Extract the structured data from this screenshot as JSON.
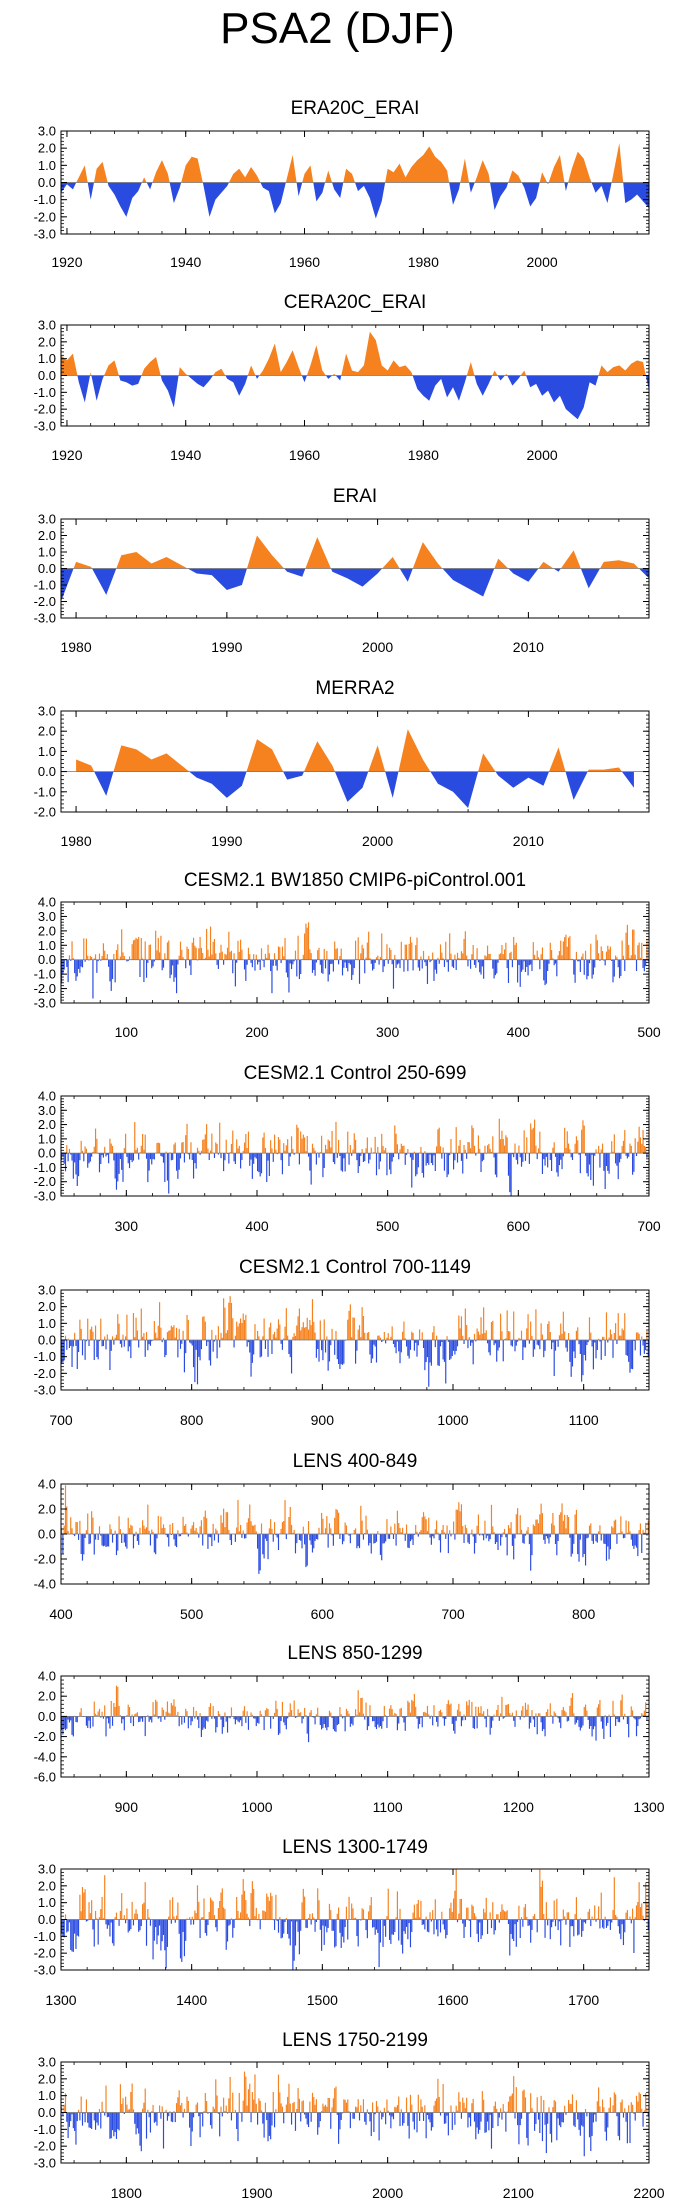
{
  "figure_title": "PSA2 (DJF)",
  "colors": {
    "positive": "#f5821f",
    "negative": "#2a4be0",
    "zero_line": "#777777"
  },
  "chart_data": [
    {
      "type": "area",
      "title": "ERA20C_ERAI",
      "xlim": [
        1919,
        2018
      ],
      "ylim": [
        -3,
        3
      ],
      "yticks": [
        "3.0",
        "2.0",
        "1.0",
        "0.0",
        "-1.0",
        "-2.0",
        "-3.0"
      ],
      "ytick_values": [
        3,
        2,
        1,
        0,
        -1,
        -2,
        -3
      ],
      "xticks": [
        1920,
        1940,
        1960,
        1980,
        2000
      ],
      "x_start": 1919,
      "x_step": 1,
      "values": [
        -0.6,
        -0.1,
        -0.4,
        0.3,
        1.0,
        -1.0,
        0.8,
        1.2,
        -0.2,
        -0.7,
        -1.4,
        -2.0,
        -0.9,
        -0.5,
        0.3,
        -0.4,
        0.6,
        1.3,
        0.5,
        -1.2,
        -0.3,
        1.0,
        1.5,
        1.4,
        -0.2,
        -2.0,
        -1.0,
        -0.6,
        -0.2,
        0.5,
        0.8,
        0.3,
        0.9,
        0.4,
        -0.3,
        -0.5,
        -1.8,
        -1.2,
        0.2,
        1.6,
        -0.8,
        0.5,
        1.0,
        -1.1,
        -0.6,
        0.7,
        -0.4,
        -0.9,
        0.8,
        0.5,
        -0.5,
        -0.2,
        -0.9,
        -2.1,
        -1.1,
        0.8,
        0.6,
        1.1,
        0.3,
        0.9,
        1.3,
        1.6,
        2.1,
        1.5,
        1.2,
        0.7,
        -1.3,
        -0.4,
        1.4,
        -0.6,
        0.3,
        1.3,
        0.5,
        -1.6,
        -0.8,
        -0.3,
        0.7,
        0.4,
        -0.3,
        -1.4,
        -0.9,
        0.6,
        -0.1,
        0.9,
        1.6,
        -0.5,
        0.8,
        1.8,
        1.4,
        0.3,
        -0.6,
        -0.2,
        -1.2,
        0.5,
        2.3,
        -1.2,
        -1.0,
        -0.7,
        -1.1,
        -1.5
      ]
    },
    {
      "type": "area",
      "title": "CERA20C_ERAI",
      "xlim": [
        1919,
        2018
      ],
      "ylim": [
        -3,
        3
      ],
      "yticks": [
        "3.0",
        "2.0",
        "1.0",
        "0.0",
        "-1.0",
        "-2.0",
        "-3.0"
      ],
      "ytick_values": [
        3,
        2,
        1,
        0,
        -1,
        -2,
        -3
      ],
      "xticks": [
        1920,
        1940,
        1960,
        1980,
        2000
      ],
      "x_start": 1919,
      "x_step": 1,
      "values": [
        1.2,
        0.9,
        1.3,
        -0.4,
        -1.6,
        0.2,
        -1.5,
        -0.2,
        0.6,
        0.9,
        -0.3,
        -0.4,
        -0.6,
        -0.5,
        0.4,
        0.8,
        1.1,
        -0.3,
        -0.9,
        -1.9,
        0.5,
        0.1,
        -0.2,
        -0.5,
        -0.7,
        -0.3,
        0.2,
        0.4,
        -0.2,
        -0.4,
        -1.2,
        -0.5,
        0.6,
        -0.2,
        0.3,
        1.0,
        1.9,
        0.2,
        0.8,
        1.5,
        0.5,
        -0.4,
        0.6,
        1.8,
        0.3,
        -0.2,
        0.1,
        -0.3,
        1.3,
        0.3,
        0.2,
        0.6,
        2.6,
        2.1,
        0.6,
        0.3,
        0.9,
        0.5,
        0.6,
        0.2,
        -0.8,
        -1.2,
        -1.5,
        -0.6,
        -0.2,
        -1.3,
        -0.7,
        -1.5,
        -0.4,
        0.8,
        -0.5,
        -1.2,
        -0.5,
        0.3,
        -0.3,
        0.1,
        -0.6,
        -0.2,
        0.3,
        -0.7,
        -0.5,
        -1.2,
        -0.9,
        -1.6,
        -1.2,
        -2.0,
        -2.3,
        -2.6,
        -1.9,
        -0.4,
        -0.6,
        0.6,
        0.2,
        0.5,
        0.6,
        0.3,
        0.7,
        0.9,
        0.8,
        -0.9
      ]
    },
    {
      "type": "area",
      "title": "ERAI",
      "xlim": [
        1979,
        2018
      ],
      "ylim": [
        -3,
        3
      ],
      "yticks": [
        "3.0",
        "2.0",
        "1.0",
        "0.0",
        "-1.0",
        "-2.0",
        "-3.0"
      ],
      "ytick_values": [
        3,
        2,
        1,
        0,
        -1,
        -2,
        -3
      ],
      "xticks": [
        1980,
        1990,
        2000,
        2010
      ],
      "x_start": 1979,
      "x_step": 1,
      "values": [
        -2.0,
        0.4,
        0.1,
        -1.6,
        0.8,
        1.0,
        0.3,
        0.7,
        0.2,
        -0.3,
        -0.4,
        -1.3,
        -1.0,
        2.0,
        0.8,
        -0.2,
        -0.5,
        1.9,
        -0.2,
        -0.6,
        -1.1,
        -0.3,
        0.7,
        -0.8,
        1.6,
        0.3,
        -0.7,
        -1.2,
        -1.7,
        0.6,
        -0.3,
        -0.8,
        0.4,
        -0.2,
        1.1,
        -1.2,
        0.4,
        0.5,
        0.3,
        -0.6
      ]
    },
    {
      "type": "area",
      "title": "MERRA2",
      "xlim": [
        1979,
        2018
      ],
      "ylim": [
        -2,
        3
      ],
      "yticks": [
        "3.0",
        "2.0",
        "1.0",
        "0.0",
        "-1.0",
        "-2.0"
      ],
      "ytick_values": [
        3,
        2,
        1,
        0,
        -1,
        -2
      ],
      "xticks": [
        1980,
        1990,
        2000,
        2010
      ],
      "x_start": 1980,
      "x_step": 1,
      "values": [
        0.6,
        0.3,
        -1.2,
        1.3,
        1.1,
        0.6,
        0.9,
        0.3,
        -0.3,
        -0.6,
        -1.3,
        -0.7,
        1.6,
        1.1,
        -0.4,
        -0.2,
        1.5,
        0.3,
        -1.5,
        -0.8,
        1.3,
        -1.3,
        2.1,
        0.6,
        -0.6,
        -1.0,
        -1.8,
        0.9,
        -0.2,
        -0.8,
        -0.3,
        -0.7,
        1.2,
        -1.4,
        0.1,
        0.1,
        0.2,
        -0.8
      ]
    },
    {
      "type": "bar",
      "title": "CESM2.1 BW1850 CMIP6-piControl.001",
      "xlim": [
        50,
        500
      ],
      "ylim": [
        -3,
        4
      ],
      "yticks": [
        "4.0",
        "3.0",
        "2.0",
        "1.0",
        "0.0",
        "-1.0",
        "-2.0",
        "-3.0"
      ],
      "ytick_values": [
        4,
        3,
        2,
        1,
        0,
        -1,
        -2,
        -3
      ],
      "xticks": [
        100,
        200,
        300,
        400,
        500
      ],
      "x_start": 50,
      "x_step": 1,
      "seed": 11,
      "amp": 1.0
    },
    {
      "type": "bar",
      "title": "CESM2.1 Control 250-699",
      "xlim": [
        250,
        700
      ],
      "ylim": [
        -3,
        4
      ],
      "yticks": [
        "4.0",
        "3.0",
        "2.0",
        "1.0",
        "0.0",
        "-1.0",
        "-2.0",
        "-3.0"
      ],
      "ytick_values": [
        4,
        3,
        2,
        1,
        0,
        -1,
        -2,
        -3
      ],
      "xticks": [
        300,
        400,
        500,
        600,
        700
      ],
      "x_start": 250,
      "x_step": 1,
      "seed": 23,
      "amp": 1.05
    },
    {
      "type": "bar",
      "title": "CESM2.1 Control 700-1149",
      "xlim": [
        700,
        1150
      ],
      "ylim": [
        -3,
        3
      ],
      "yticks": [
        "3.0",
        "2.0",
        "1.0",
        "0.0",
        "-1.0",
        "-2.0",
        "-3.0"
      ],
      "ytick_values": [
        3,
        2,
        1,
        0,
        -1,
        -2,
        -3
      ],
      "xticks": [
        700,
        800,
        900,
        1000,
        1100
      ],
      "x_start": 700,
      "x_step": 1,
      "seed": 37,
      "amp": 1.0
    },
    {
      "type": "bar",
      "title": "LENS 400-849",
      "xlim": [
        400,
        850
      ],
      "ylim": [
        -4,
        4
      ],
      "yticks": [
        "4.0",
        "2.0",
        "0.0",
        "-2.0",
        "-4.0"
      ],
      "ytick_values": [
        4,
        2,
        0,
        -2,
        -4
      ],
      "xticks": [
        400,
        500,
        600,
        700,
        800
      ],
      "x_start": 400,
      "x_step": 1,
      "seed": 41,
      "amp": 1.0
    },
    {
      "type": "bar",
      "title": "LENS 850-1299",
      "xlim": [
        850,
        1300
      ],
      "ylim": [
        -6,
        4
      ],
      "yticks": [
        "4.0",
        "2.0",
        "0.0",
        "-2.0",
        "-4.0",
        "-6.0"
      ],
      "ytick_values": [
        4,
        2,
        0,
        -2,
        -4,
        -6
      ],
      "xticks": [
        900,
        1000,
        1100,
        1200,
        1300
      ],
      "x_start": 850,
      "x_step": 1,
      "seed": 53,
      "amp": 0.95
    },
    {
      "type": "bar",
      "title": "LENS 1300-1749",
      "xlim": [
        1300,
        1750
      ],
      "ylim": [
        -3,
        3
      ],
      "yticks": [
        "3.0",
        "2.0",
        "1.0",
        "0.0",
        "-1.0",
        "-2.0",
        "-3.0"
      ],
      "ytick_values": [
        3,
        2,
        1,
        0,
        -1,
        -2,
        -3
      ],
      "xticks": [
        1300,
        1400,
        1500,
        1600,
        1700
      ],
      "x_start": 1300,
      "x_step": 1,
      "seed": 67,
      "amp": 1.0
    },
    {
      "type": "bar",
      "title": "LENS 1750-2199",
      "xlim": [
        1750,
        2200
      ],
      "ylim": [
        -3,
        3
      ],
      "yticks": [
        "3.0",
        "2.0",
        "1.0",
        "0.0",
        "-1.0",
        "-2.0",
        "-3.0"
      ],
      "ytick_values": [
        3,
        2,
        1,
        0,
        -1,
        -2,
        -3
      ],
      "xticks": [
        1800,
        1900,
        2000,
        2100,
        2200
      ],
      "x_start": 1750,
      "x_step": 1,
      "seed": 79,
      "amp": 1.0
    }
  ]
}
